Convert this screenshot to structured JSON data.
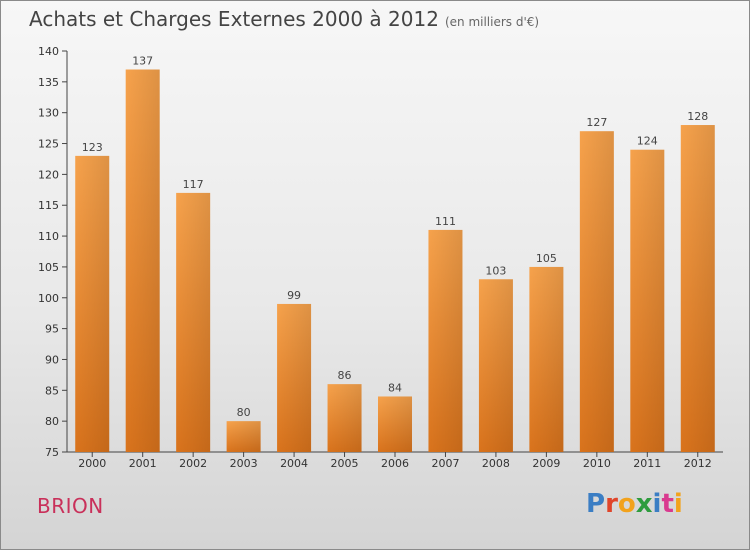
{
  "header": {
    "title": "Achats et Charges Externes 2000 à 2012",
    "subtitle": "(en milliers d'€)"
  },
  "footer": {
    "place": "BRION",
    "logo_text": "Proxiti",
    "logo_letters": [
      "P",
      "r",
      "o",
      "x",
      "i",
      "t",
      "i"
    ],
    "logo_colors": [
      "#3b7ec4",
      "#e0452a",
      "#f2a21c",
      "#2e9c3e",
      "#3b7ec4",
      "#d93a8f",
      "#f2a21c"
    ]
  },
  "chart_data": {
    "type": "bar",
    "categories": [
      "2000",
      "2001",
      "2002",
      "2003",
      "2004",
      "2005",
      "2006",
      "2007",
      "2008",
      "2009",
      "2010",
      "2011",
      "2012"
    ],
    "values": [
      123,
      137,
      117,
      80,
      99,
      86,
      84,
      111,
      103,
      105,
      127,
      124,
      128
    ],
    "ylim": [
      75,
      140
    ],
    "yticks": [
      75,
      80,
      85,
      90,
      95,
      100,
      105,
      110,
      115,
      120,
      125,
      130,
      135,
      140
    ],
    "bar_color": "#f08a2a",
    "grid": false
  }
}
